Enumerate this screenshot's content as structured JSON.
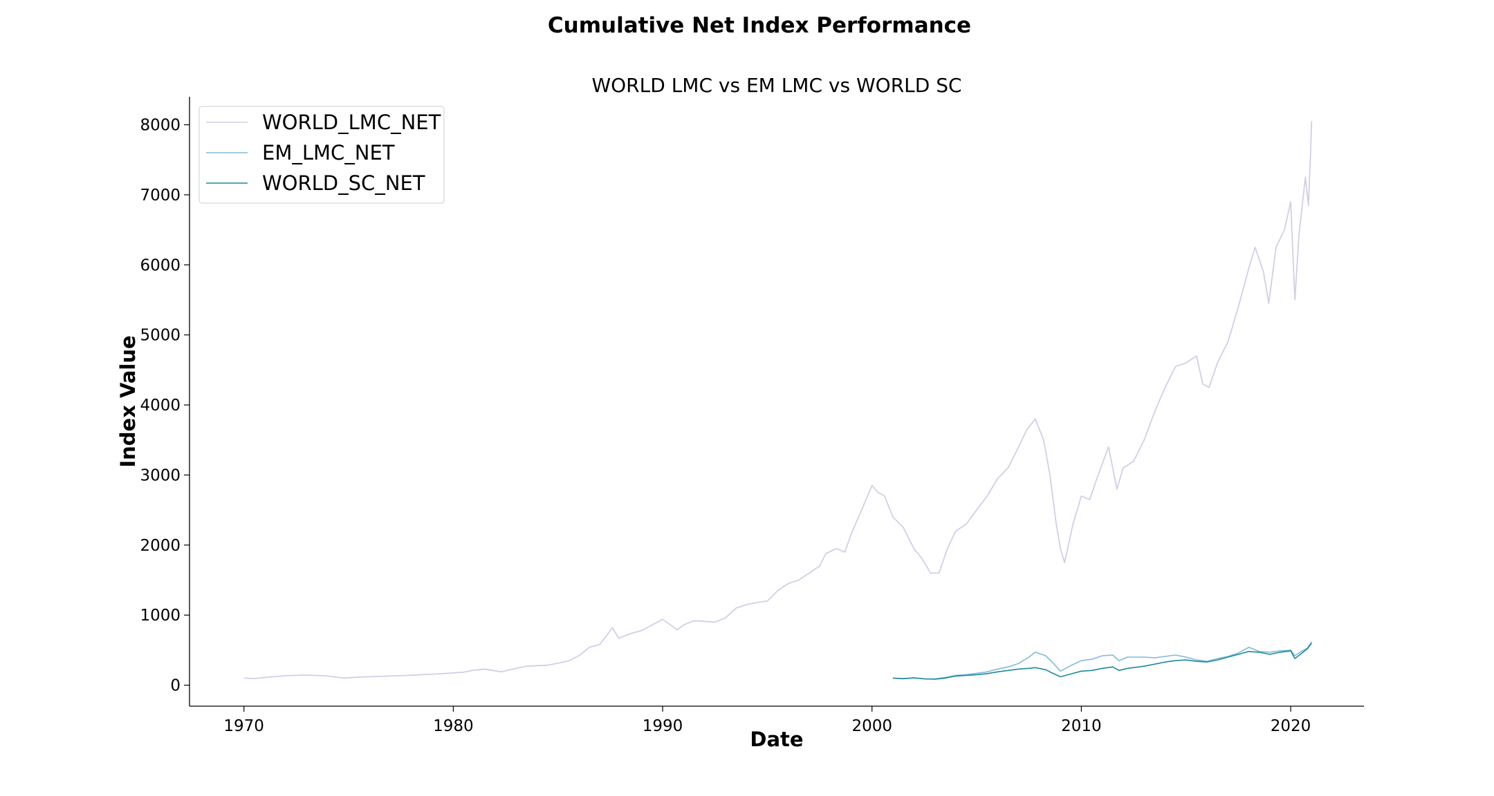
{
  "chart_data": {
    "type": "line",
    "title": "Cumulative Net Index Performance",
    "subtitle": "WORLD LMC vs EM LMC vs WORLD SC",
    "xlabel": "Date",
    "ylabel": "Index Value",
    "xlim": [
      1967.4,
      2023.5
    ],
    "ylim": [
      -300,
      8400
    ],
    "x_ticks": [
      1970,
      1980,
      1990,
      2000,
      2010,
      2020
    ],
    "x_tick_labels": [
      "1970",
      "1980",
      "1990",
      "2000",
      "2010",
      "2020"
    ],
    "y_ticks": [
      0,
      1000,
      2000,
      3000,
      4000,
      5000,
      6000,
      7000,
      8000
    ],
    "y_tick_labels": [
      "0",
      "1000",
      "2000",
      "3000",
      "4000",
      "5000",
      "6000",
      "7000",
      "8000"
    ],
    "grid": false,
    "legend_position": "top-left",
    "series": [
      {
        "name": "WORLD_LMC_NET",
        "color": "#d0cfe6",
        "x": [
          1970.0,
          1970.5,
          1971.0,
          1972.0,
          1973.0,
          1974.0,
          1974.8,
          1975.5,
          1976.5,
          1977.5,
          1978.5,
          1979.5,
          1980.5,
          1981.0,
          1981.5,
          1982.3,
          1983.0,
          1983.5,
          1984.5,
          1985.5,
          1986.0,
          1986.5,
          1987.0,
          1987.6,
          1987.9,
          1988.5,
          1989.0,
          1989.5,
          1990.0,
          1990.7,
          1991.0,
          1991.5,
          1992.0,
          1992.5,
          1993.0,
          1993.5,
          1994.0,
          1994.5,
          1995.0,
          1995.5,
          1996.0,
          1996.5,
          1997.0,
          1997.5,
          1997.8,
          1998.3,
          1998.7,
          1999.0,
          1999.5,
          2000.0,
          2000.3,
          2000.6,
          2001.0,
          2001.5,
          2002.0,
          2002.4,
          2002.8,
          2003.2,
          2003.6,
          2004.0,
          2004.5,
          2005.0,
          2005.5,
          2006.0,
          2006.5,
          2007.0,
          2007.4,
          2007.8,
          2008.2,
          2008.5,
          2008.8,
          2009.0,
          2009.2,
          2009.6,
          2010.0,
          2010.4,
          2010.8,
          2011.3,
          2011.7,
          2012.0,
          2012.5,
          2013.0,
          2013.5,
          2014.0,
          2014.5,
          2015.0,
          2015.5,
          2015.8,
          2016.1,
          2016.5,
          2017.0,
          2017.5,
          2018.0,
          2018.3,
          2018.7,
          2018.95,
          2019.3,
          2019.7,
          2020.0,
          2020.2,
          2020.4,
          2020.7,
          2020.85,
          2020.95,
          2021.0
        ],
        "y": [
          100,
          95,
          110,
          135,
          145,
          130,
          100,
          115,
          125,
          135,
          150,
          165,
          185,
          215,
          230,
          190,
          240,
          270,
          285,
          345,
          420,
          540,
          580,
          820,
          670,
          740,
          780,
          860,
          940,
          790,
          860,
          920,
          910,
          900,
          960,
          1100,
          1150,
          1180,
          1200,
          1350,
          1450,
          1500,
          1600,
          1700,
          1880,
          1950,
          1900,
          2150,
          2500,
          2850,
          2750,
          2700,
          2400,
          2250,
          1950,
          1800,
          1600,
          1600,
          1950,
          2200,
          2300,
          2500,
          2700,
          2950,
          3100,
          3400,
          3650,
          3800,
          3500,
          3000,
          2300,
          1950,
          1750,
          2300,
          2700,
          2650,
          3000,
          3400,
          2800,
          3100,
          3200,
          3500,
          3900,
          4250,
          4550,
          4600,
          4700,
          4300,
          4250,
          4600,
          4900,
          5400,
          5950,
          6250,
          5900,
          5450,
          6250,
          6500,
          6900,
          5500,
          6450,
          7250,
          6850,
          7600,
          8050
        ]
      },
      {
        "name": "EM_LMC_NET",
        "color": "#7fb9d8",
        "x": [
          2001.0,
          2001.5,
          2002.0,
          2002.5,
          2003.0,
          2003.5,
          2004.0,
          2004.5,
          2005.0,
          2005.5,
          2006.0,
          2006.5,
          2007.0,
          2007.5,
          2007.8,
          2008.3,
          2008.7,
          2009.0,
          2009.5,
          2010.0,
          2010.5,
          2011.0,
          2011.5,
          2011.8,
          2012.2,
          2013.0,
          2013.5,
          2014.0,
          2014.5,
          2015.0,
          2015.5,
          2016.0,
          2016.5,
          2017.0,
          2017.5,
          2018.0,
          2018.5,
          2019.0,
          2019.5,
          2020.0,
          2020.2,
          2020.5,
          2020.8,
          2021.0
        ],
        "y": [
          100,
          90,
          105,
          90,
          90,
          110,
          140,
          150,
          170,
          190,
          230,
          260,
          310,
          400,
          470,
          420,
          300,
          200,
          280,
          350,
          370,
          420,
          430,
          350,
          400,
          400,
          390,
          410,
          430,
          400,
          360,
          340,
          380,
          410,
          460,
          540,
          480,
          470,
          490,
          500,
          420,
          480,
          530,
          620
        ]
      },
      {
        "name": "WORLD_SC_NET",
        "color": "#1a8a99",
        "x": [
          2001.0,
          2001.5,
          2002.0,
          2002.5,
          2003.0,
          2003.5,
          2004.0,
          2004.5,
          2005.0,
          2005.5,
          2006.0,
          2006.5,
          2007.0,
          2007.5,
          2007.8,
          2008.3,
          2008.7,
          2009.0,
          2009.5,
          2010.0,
          2010.5,
          2011.0,
          2011.5,
          2011.8,
          2012.2,
          2013.0,
          2013.5,
          2014.0,
          2014.5,
          2015.0,
          2015.5,
          2016.0,
          2016.5,
          2017.0,
          2017.5,
          2018.0,
          2018.5,
          2019.0,
          2019.5,
          2020.0,
          2020.2,
          2020.5,
          2020.8,
          2021.0
        ],
        "y": [
          100,
          95,
          105,
          90,
          85,
          100,
          130,
          140,
          150,
          165,
          190,
          210,
          230,
          240,
          250,
          220,
          160,
          120,
          160,
          200,
          210,
          240,
          260,
          210,
          240,
          270,
          300,
          330,
          350,
          360,
          340,
          330,
          360,
          400,
          440,
          480,
          470,
          440,
          470,
          490,
          380,
          450,
          520,
          600
        ]
      }
    ]
  }
}
